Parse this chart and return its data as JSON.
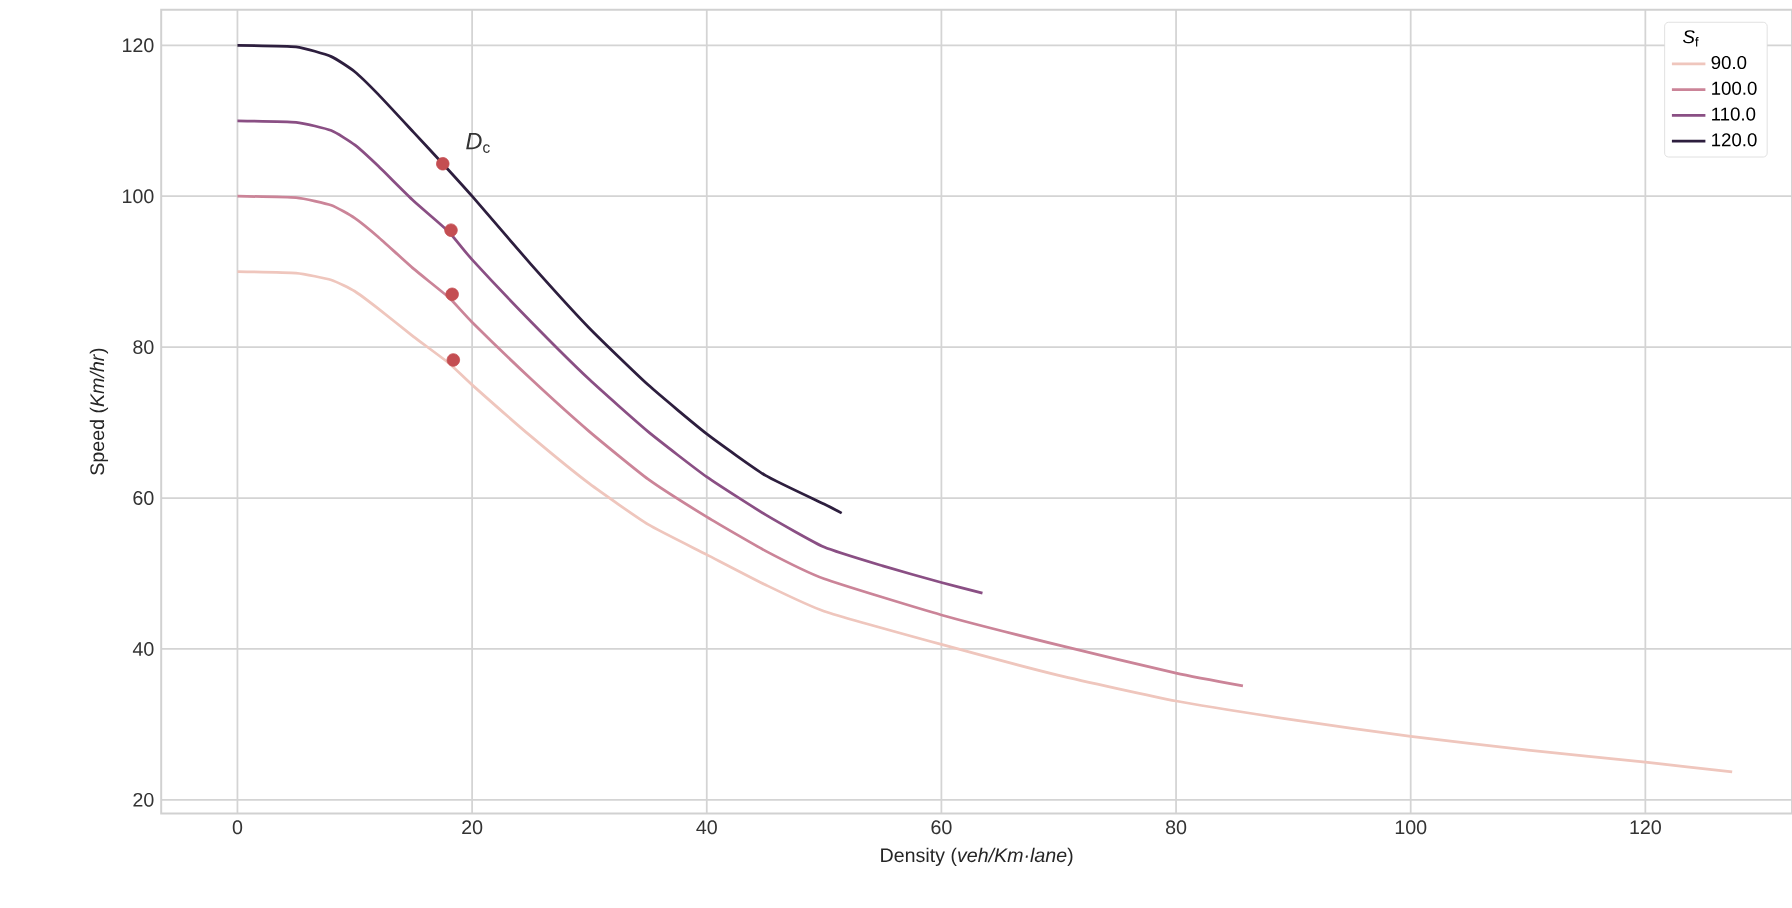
{
  "chart_data": {
    "type": "line",
    "xlabel": "Density (*veh/Km·lane*)",
    "ylabel": "Speed (*Km/hr*)",
    "legend_title": "*S*$_{f}$",
    "legend": "top right",
    "grid": true,
    "xlim": [
      -6.5,
      132.5
    ],
    "ylim": [
      18.2,
      124.7
    ],
    "xticks": [
      0,
      20,
      40,
      60,
      80,
      100,
      120
    ],
    "yticks": [
      20,
      40,
      60,
      80,
      100,
      120
    ],
    "annotations": [
      "*D*$_{c}$"
    ],
    "series": [
      {
        "name": "90.0",
        "color": "#efc6bd",
        "x": [
          0,
          5,
          8,
          10,
          12,
          15,
          18,
          20,
          25,
          30,
          35,
          40,
          45,
          50,
          60,
          70,
          80,
          90,
          100,
          110,
          120,
          127.4
        ],
        "values": [
          90,
          89.8,
          88.9,
          87.4,
          85.1,
          81.4,
          77.9,
          75,
          68.2,
          61.9,
          56.5,
          52.5,
          48.5,
          45,
          40.6,
          36.5,
          33.1,
          30.6,
          28.4,
          26.6,
          25,
          23.7
        ]
      },
      {
        "name": "100.0",
        "color": "#cb8498",
        "x": [
          0,
          5,
          8,
          10,
          12,
          15,
          18,
          20,
          25,
          30,
          35,
          40,
          45,
          50,
          60,
          70,
          80,
          85.7
        ],
        "values": [
          100,
          99.8,
          98.8,
          97.1,
          94.6,
          90.4,
          86.6,
          83.3,
          75.8,
          68.8,
          62.5,
          57.5,
          53,
          49.3,
          44.5,
          40.5,
          36.8,
          35.1
        ]
      },
      {
        "name": "110.0",
        "color": "#8a4f84",
        "x": [
          0,
          5,
          8,
          10,
          12,
          15,
          18,
          20,
          25,
          30,
          35,
          40,
          45,
          50,
          55,
          60,
          63.5
        ],
        "values": [
          110,
          109.8,
          108.7,
          106.8,
          104,
          99.4,
          95.3,
          91.6,
          83.4,
          75.7,
          68.8,
          62.8,
          57.8,
          53.5,
          51,
          48.8,
          47.4
        ]
      },
      {
        "name": "120.0",
        "color": "#2d1e3e",
        "x": [
          0,
          5,
          8,
          10,
          12,
          15,
          17.5,
          20,
          25,
          30,
          35,
          40,
          45,
          50,
          51.5
        ],
        "values": [
          120,
          119.8,
          118.5,
          116.5,
          113.5,
          108.5,
          104.3,
          100,
          91,
          82.5,
          75,
          68.5,
          63,
          59.2,
          58
        ]
      },
      {
        "type": "scatter",
        "marker": "circle",
        "color": "#c44e52",
        "x": [
          17.5,
          18.2,
          18.3,
          18.4
        ],
        "values": [
          104.3,
          95.5,
          87,
          78.3
        ]
      }
    ]
  }
}
